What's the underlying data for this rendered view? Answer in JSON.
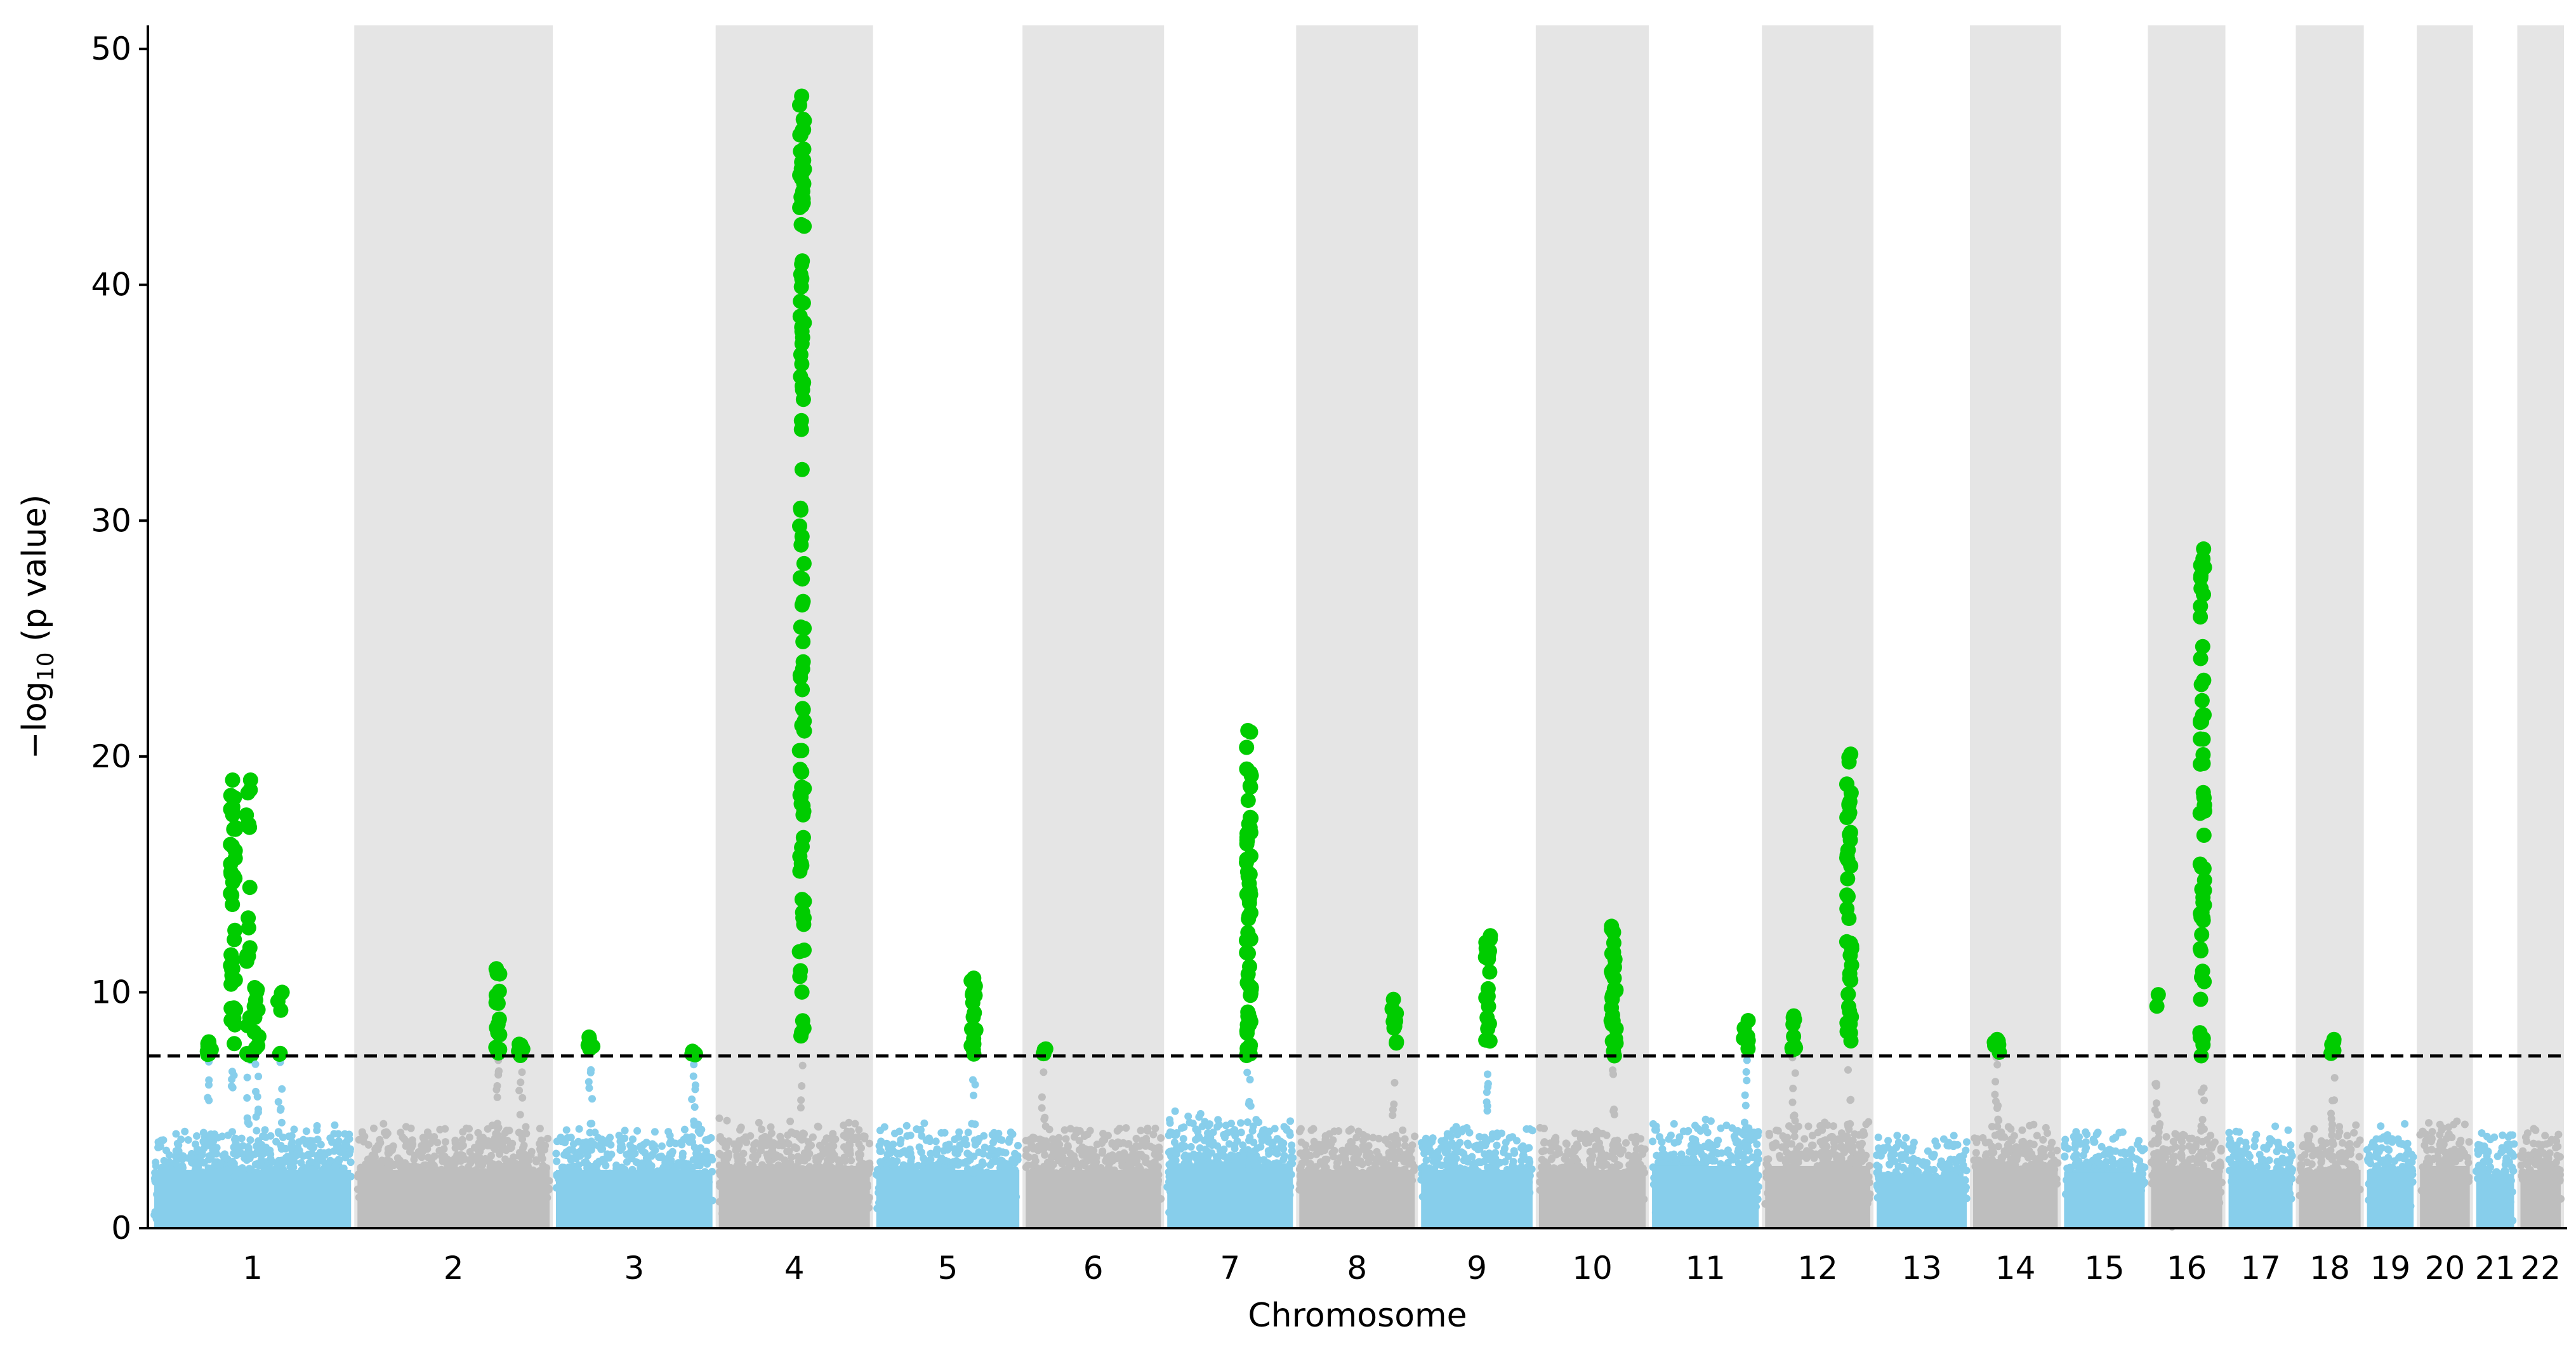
{
  "chart_data": {
    "type": "scatter",
    "subtype": "manhattan",
    "title": "",
    "xlabel": "Chromosome",
    "ylabel_parts": {
      "base": "−log",
      "sub": "10",
      "rest": " (p value)"
    },
    "ylim": [
      0,
      51
    ],
    "yticks": [
      0,
      10,
      20,
      30,
      40,
      50
    ],
    "threshold": 7.3,
    "threshold_style": "dashed",
    "grid": false,
    "legend": "none",
    "colors": {
      "odd_chrom": "#87ceeb",
      "even_chrom": "#bebebe",
      "significant": "#00cc00",
      "band": "#e5e5e5",
      "threshold_line": "#000000"
    },
    "chromosomes": [
      {
        "label": "1",
        "length": 249,
        "bg_max": 4.5,
        "peaks": [
          {
            "pos": 0.28,
            "max": 7.9,
            "n": 8
          },
          {
            "pos": 0.4,
            "max": 19.0,
            "n": 40
          },
          {
            "pos": 0.48,
            "max": 19.0,
            "n": 20
          },
          {
            "pos": 0.52,
            "max": 10.2,
            "n": 12
          },
          {
            "pos": 0.64,
            "max": 10.0,
            "n": 6
          }
        ]
      },
      {
        "label": "2",
        "length": 243,
        "bg_max": 4.5,
        "peaks": [
          {
            "pos": 0.73,
            "max": 11.0,
            "n": 18
          },
          {
            "pos": 0.85,
            "max": 7.8,
            "n": 6
          }
        ]
      },
      {
        "label": "3",
        "length": 198,
        "bg_max": 4.5,
        "peaks": [
          {
            "pos": 0.22,
            "max": 8.1,
            "n": 6
          },
          {
            "pos": 0.88,
            "max": 7.5,
            "n": 5
          }
        ]
      },
      {
        "label": "4",
        "length": 191,
        "bg_max": 4.8,
        "peaks": [
          {
            "pos": 0.55,
            "max": 48.0,
            "n": 110
          }
        ]
      },
      {
        "label": "5",
        "length": 181,
        "bg_max": 4.5,
        "peaks": [
          {
            "pos": 0.68,
            "max": 10.6,
            "n": 20
          }
        ]
      },
      {
        "label": "6",
        "length": 171,
        "bg_max": 4.5,
        "peaks": [
          {
            "pos": 0.13,
            "max": 7.6,
            "n": 4
          }
        ]
      },
      {
        "label": "7",
        "length": 159,
        "bg_max": 5.0,
        "peaks": [
          {
            "pos": 0.65,
            "max": 21.1,
            "n": 70
          }
        ]
      },
      {
        "label": "8",
        "length": 146,
        "bg_max": 4.5,
        "peaks": [
          {
            "pos": 0.82,
            "max": 9.7,
            "n": 10
          }
        ]
      },
      {
        "label": "9",
        "length": 141,
        "bg_max": 4.5,
        "peaks": [
          {
            "pos": 0.6,
            "max": 12.4,
            "n": 22
          }
        ]
      },
      {
        "label": "10",
        "length": 135,
        "bg_max": 4.5,
        "peaks": [
          {
            "pos": 0.7,
            "max": 12.8,
            "n": 30
          }
        ]
      },
      {
        "label": "11",
        "length": 135,
        "bg_max": 4.8,
        "peaks": [
          {
            "pos": 0.88,
            "max": 8.8,
            "n": 6
          }
        ]
      },
      {
        "label": "12",
        "length": 133,
        "bg_max": 4.8,
        "peaks": [
          {
            "pos": 0.27,
            "max": 9.0,
            "n": 10
          },
          {
            "pos": 0.8,
            "max": 20.1,
            "n": 45
          }
        ]
      },
      {
        "label": "13",
        "length": 114,
        "bg_max": 4.0,
        "peaks": []
      },
      {
        "label": "14",
        "length": 107,
        "bg_max": 4.8,
        "peaks": [
          {
            "pos": 0.28,
            "max": 8.0,
            "n": 6
          }
        ]
      },
      {
        "label": "15",
        "length": 102,
        "bg_max": 4.3,
        "peaks": []
      },
      {
        "label": "16",
        "length": 90,
        "bg_max": 4.5,
        "peaks": [
          {
            "pos": 0.07,
            "max": 9.9,
            "n": 2
          },
          {
            "pos": 0.72,
            "max": 28.8,
            "n": 60
          }
        ]
      },
      {
        "label": "17",
        "length": 81,
        "bg_max": 4.5,
        "peaks": []
      },
      {
        "label": "18",
        "length": 78,
        "bg_max": 4.5,
        "peaks": [
          {
            "pos": 0.55,
            "max": 8.0,
            "n": 6
          }
        ]
      },
      {
        "label": "19",
        "length": 59,
        "bg_max": 4.5,
        "peaks": []
      },
      {
        "label": "20",
        "length": 63,
        "bg_max": 4.8,
        "peaks": []
      },
      {
        "label": "21",
        "length": 48,
        "bg_max": 4.2,
        "peaks": []
      },
      {
        "label": "22",
        "length": 51,
        "bg_max": 4.5,
        "peaks": []
      }
    ]
  }
}
